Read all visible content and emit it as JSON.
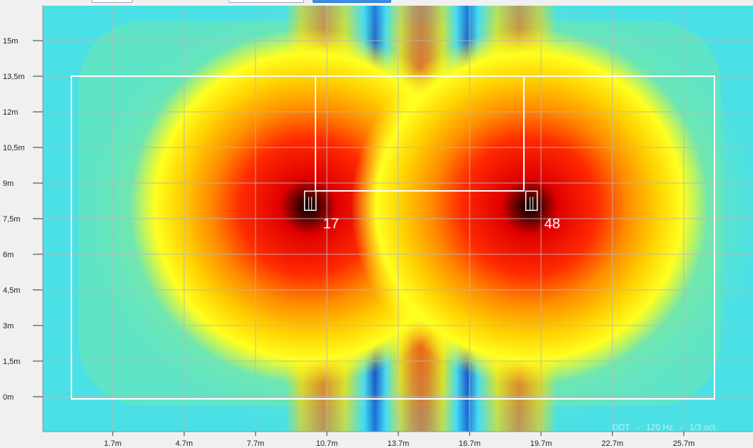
{
  "plot": {
    "y_ticks": [
      {
        "label": "15m",
        "value": 15
      },
      {
        "label": "13,5m",
        "value": 13.5
      },
      {
        "label": "12m",
        "value": 12
      },
      {
        "label": "10,5m",
        "value": 10.5
      },
      {
        "label": "9m",
        "value": 9
      },
      {
        "label": "7,5m",
        "value": 7.5
      },
      {
        "label": "6m",
        "value": 6
      },
      {
        "label": "4,5m",
        "value": 4.5
      },
      {
        "label": "3m",
        "value": 3
      },
      {
        "label": "1,5m",
        "value": 1.5
      },
      {
        "label": "0m",
        "value": 0
      }
    ],
    "x_ticks": [
      {
        "label": "1.7m",
        "value": 1.7
      },
      {
        "label": "4.7m",
        "value": 4.7
      },
      {
        "label": "7.7m",
        "value": 7.7
      },
      {
        "label": "10.7m",
        "value": 10.7
      },
      {
        "label": "13.7m",
        "value": 13.7
      },
      {
        "label": "16.7m",
        "value": 16.7
      },
      {
        "label": "19.7m",
        "value": 19.7
      },
      {
        "label": "22.7m",
        "value": 22.7
      },
      {
        "label": "25.7m",
        "value": 25.7
      }
    ],
    "speakers": [
      {
        "id": "speaker-17",
        "label": "17",
        "x": 10.0,
        "y": 8.0
      },
      {
        "id": "speaker-48",
        "label": "48",
        "x": 19.3,
        "y": 8.0
      }
    ],
    "legend": {
      "metric": "DDT",
      "frequency": "120 Hz",
      "band": "1/3 oct."
    },
    "colors": {
      "background": "#4be0e6",
      "outline": "#ffffff",
      "grid": "#b8b8b8"
    }
  }
}
